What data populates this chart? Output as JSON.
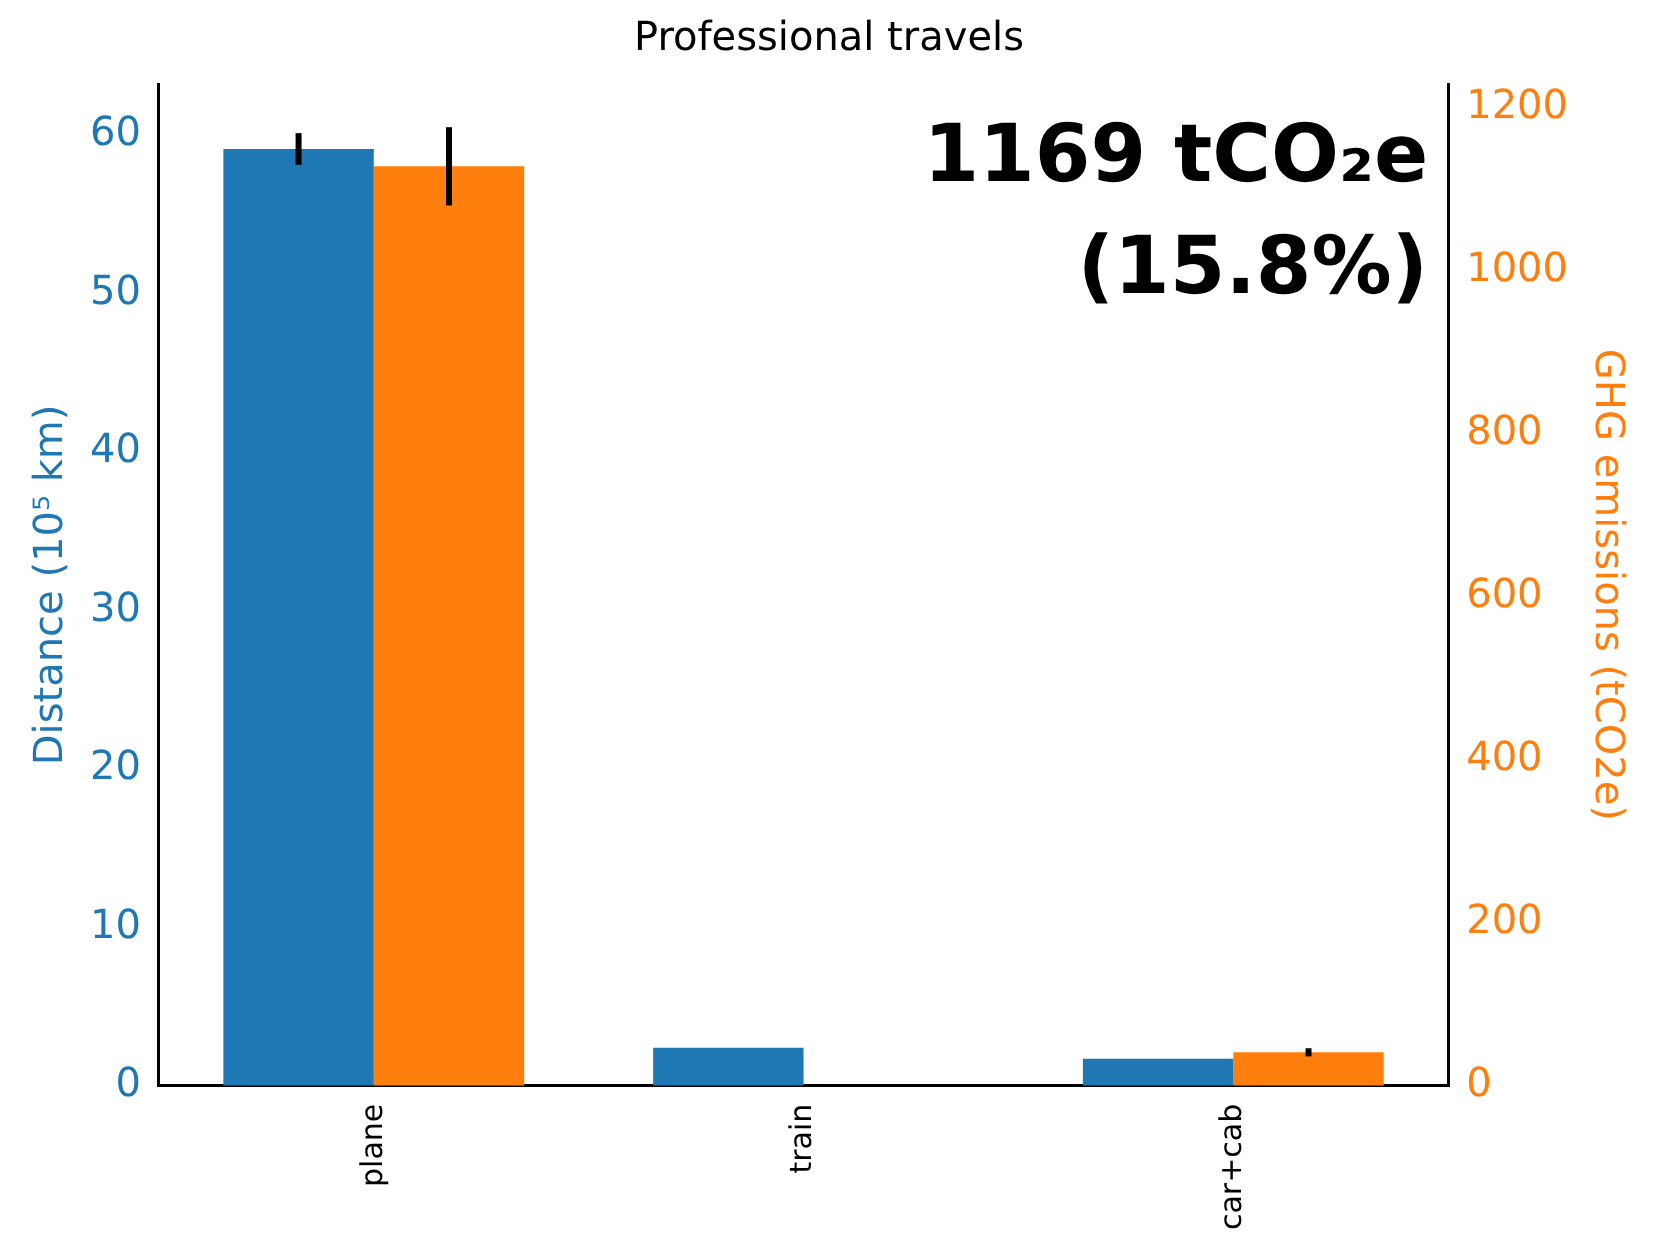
{
  "chart_data": {
    "type": "bar",
    "title": "Professional travels",
    "ylabel": "Distance (10⁵ km)",
    "y2label": "GHG emissions (tCO2e)",
    "categories": [
      "plane",
      "train",
      "car+cab"
    ],
    "series": [
      {
        "color": "#1f77b4",
        "values": [
          59.1,
          2.4,
          1.7
        ],
        "errors": [
          1,
          null,
          null
        ]
      },
      {
        "color": "#ff7f0e",
        "axis": "y2",
        "values": [
          1128,
          null,
          41
        ],
        "errors": [
          48,
          null,
          5
        ]
      }
    ],
    "ylim": [
      0,
      63.2
    ],
    "yticks": [
      0,
      10,
      20,
      30,
      40,
      50,
      60
    ],
    "y2lim": [
      0,
      1229
    ],
    "y2ticks": [
      0,
      200,
      400,
      600,
      800,
      1000,
      1200
    ],
    "annotations": [
      "1169 tCO₂e",
      "(15.8%)"
    ],
    "grid": false,
    "legend": false
  }
}
